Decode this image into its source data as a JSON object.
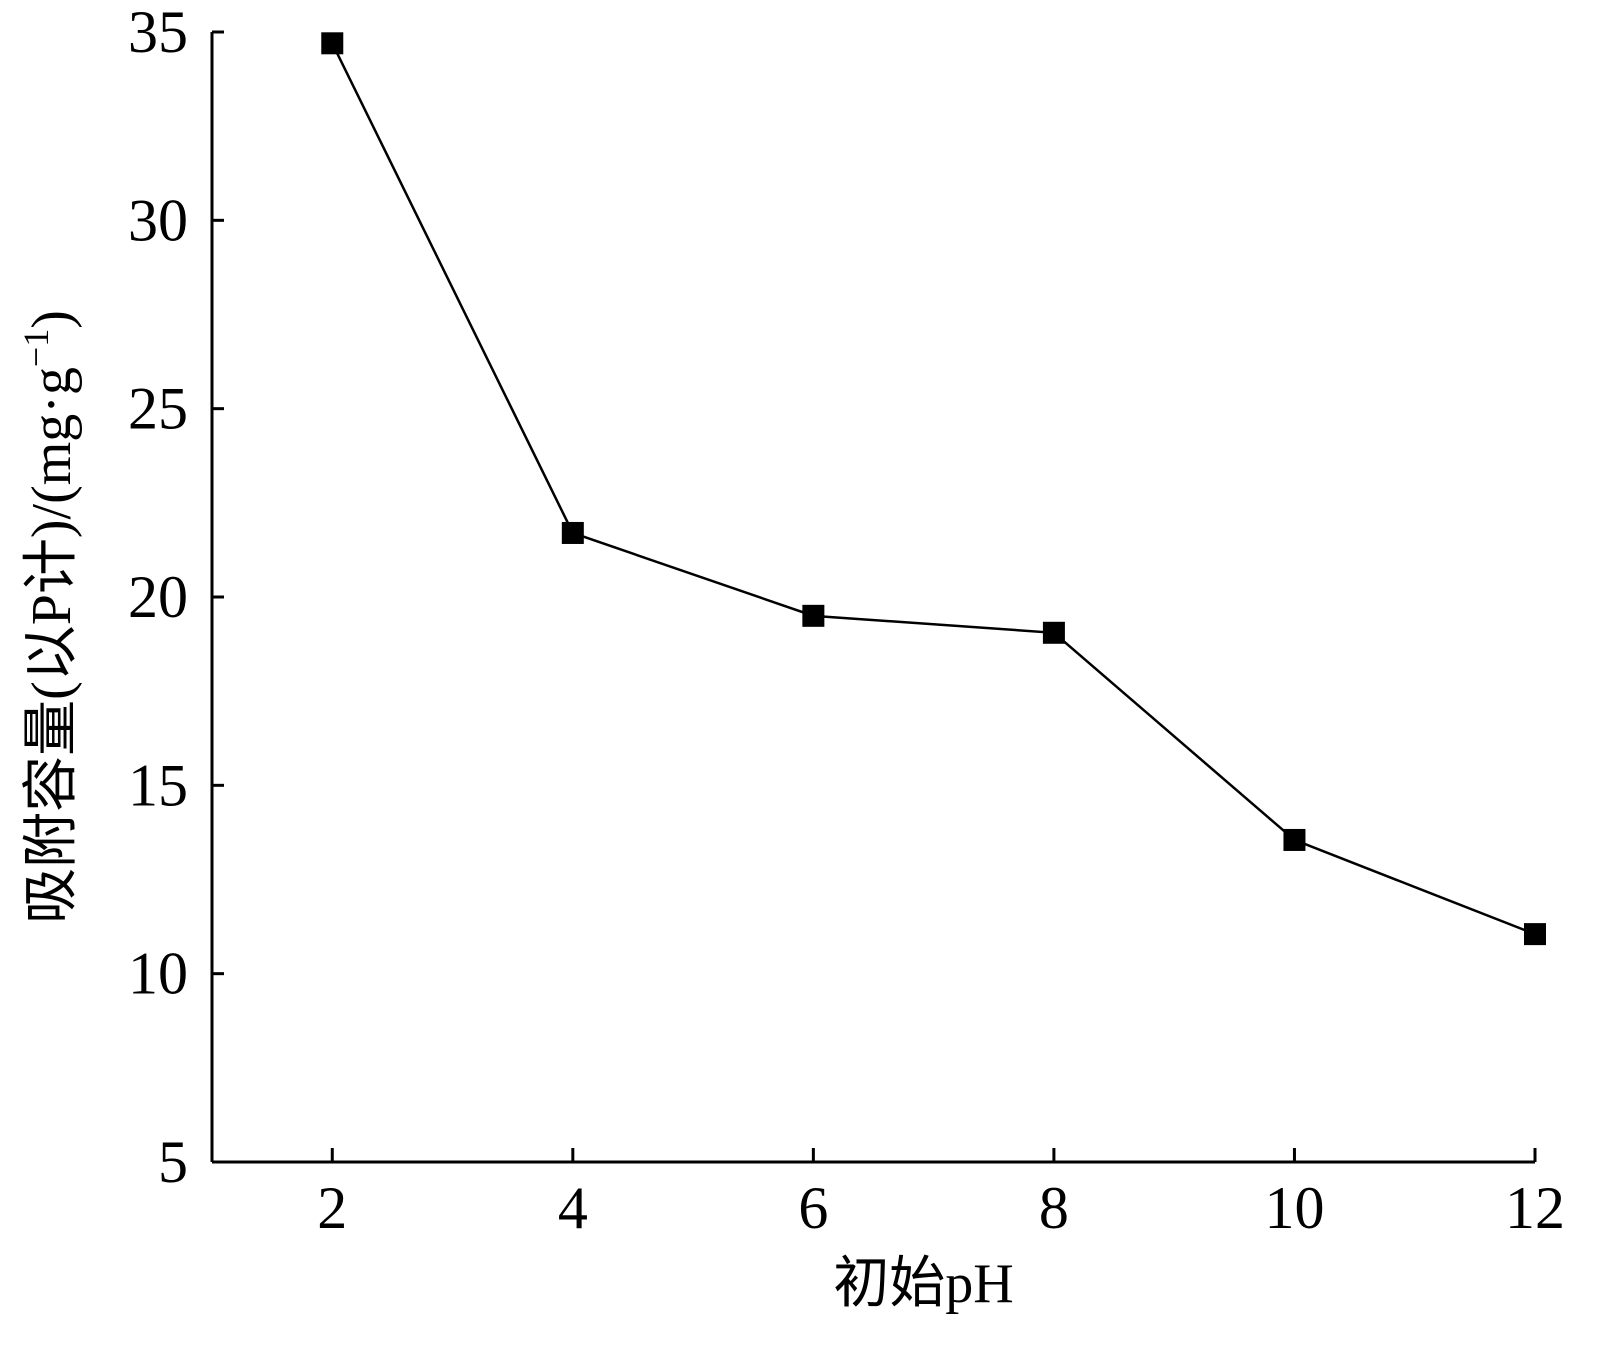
{
  "chart_data": {
    "type": "line",
    "title": "",
    "xlabel": "初始pH",
    "ylabel": "吸附容量(以P计)/(mg·g",
    "ylabel_superscript": "−1",
    "ylabel_close": ")",
    "x": [
      2,
      4,
      6,
      8,
      10,
      12
    ],
    "series": [
      {
        "values": [
          34.7,
          21.7,
          19.5,
          19.05,
          13.55,
          11.05
        ],
        "marker": "filled-square",
        "color": "#000000"
      }
    ],
    "xlim": [
      1,
      12
    ],
    "ylim": [
      5,
      35
    ],
    "xticks": [
      2,
      4,
      6,
      8,
      10,
      12
    ],
    "yticks": [
      5,
      10,
      15,
      20,
      25,
      30,
      35
    ],
    "grid": false,
    "legend": "none"
  }
}
